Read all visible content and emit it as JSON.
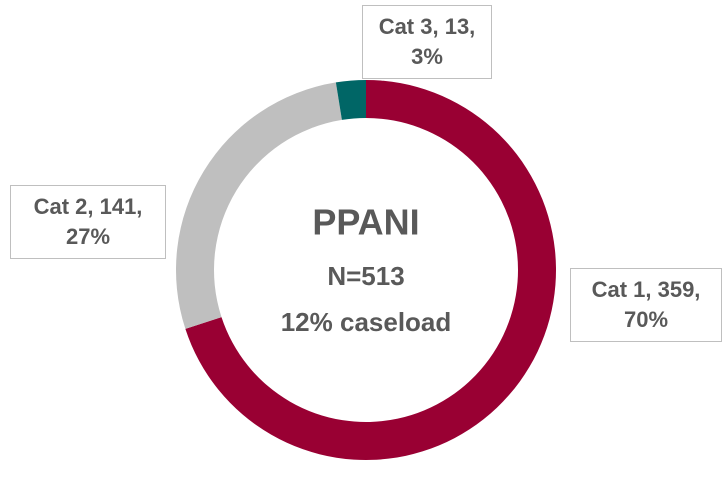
{
  "chart_data": {
    "type": "donut",
    "categories": [
      "Cat 1",
      "Cat 2",
      "Cat 3"
    ],
    "values": [
      359,
      141,
      13
    ],
    "value_labels": [
      "Cat 1, 359, 70%",
      "Cat 2, 141, 27%",
      "Cat 3, 13, 3%"
    ],
    "colors": [
      "#990033",
      "#bfbfbf",
      "#006666"
    ],
    "center_title": "PPANI",
    "center_lines": [
      "N=513",
      "12% caseload"
    ]
  }
}
